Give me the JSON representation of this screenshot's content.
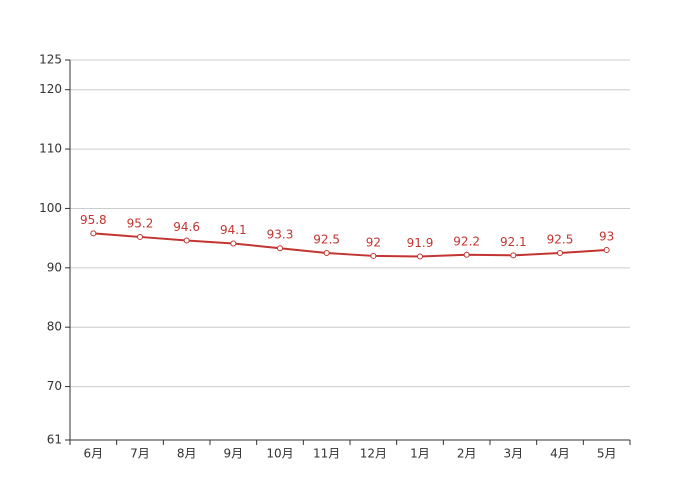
{
  "chart_data": {
    "type": "line",
    "categories": [
      "6月",
      "7月",
      "8月",
      "9月",
      "10月",
      "11月",
      "12月",
      "1月",
      "2月",
      "3月",
      "4月",
      "5月"
    ],
    "series": [
      {
        "color": "#c23531",
        "values": [
          95.8,
          95.2,
          94.6,
          94.1,
          93.3,
          92.5,
          92,
          91.9,
          92.2,
          92.1,
          92.5,
          93
        ]
      }
    ],
    "ylim": [
      61,
      125
    ],
    "yticks": [
      61,
      70,
      80,
      90,
      100,
      110,
      120,
      125
    ],
    "grid": true
  }
}
